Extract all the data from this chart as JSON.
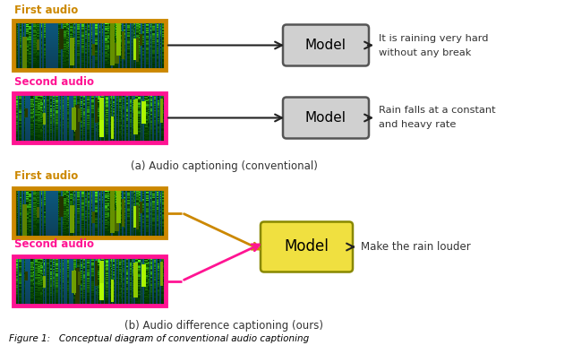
{
  "bg_color": "#ffffff",
  "first_audio_color": "#CC8800",
  "second_audio_color": "#FF1493",
  "model_gray_fill": "#D0D0D0",
  "model_gray_border": "#555555",
  "model_yellow_fill": "#F0E040",
  "model_yellow_border": "#888800",
  "arrow_color": "#222222",
  "text_color": "#333333",
  "caption_color": "#333333",
  "first_audio_label": "First audio",
  "second_audio_label": "Second audio",
  "caption_a": "(a) Audio captioning (conventional)",
  "caption_b": "(b) Audio difference captioning (ours)",
  "model_text": "Model",
  "out1_line1": "It is raining very hard",
  "out1_line2": "without any break",
  "out2_line1": "Rain falls at a constant",
  "out2_line2": "and heavy rate",
  "out3": "Make the rain louder",
  "figure_caption": "Figure 1:   Conceptual diagram of conventional audio captioning"
}
